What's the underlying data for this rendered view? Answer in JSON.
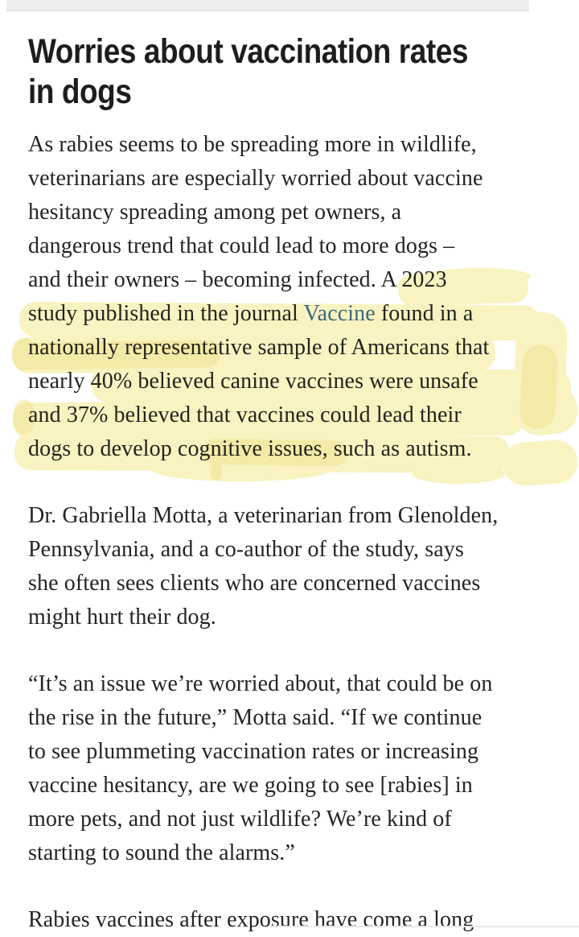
{
  "colors": {
    "highlight": "#f7f0b2",
    "highlight-dark": "#eee08d",
    "link": "#3d6ea5",
    "heading-text": "#1d1d1d",
    "body-text": "#242424",
    "top-bar": "#ededed",
    "top-bar-border": "#dcdcdc",
    "divider": "#e9e9e9"
  },
  "article": {
    "heading_lines": [
      "Worries about vaccination rates",
      "in dogs"
    ],
    "paragraph1_lines": [
      "As rabies seems to be spreading more in wildlife,",
      "veterinarians are especially worried about vaccine",
      "hesitancy spreading among pet owners, a",
      "dangerous trend that could lead to more dogs –",
      "and their owners – becoming infected. A 2023",
      [
        "study published in the journal ",
        {
          "text": "Vaccine",
          "class": "link",
          "name": "journal-vaccine-link",
          "interactable": true
        },
        " found in a"
      ],
      "nationally representative sample of Americans that",
      "nearly 40% believed canine vaccines were unsafe",
      "and 37% believed that vaccines could lead their",
      "dogs to develop cognitive issues, such as autism."
    ],
    "paragraph2_lines": [
      "Dr. Gabriella Motta, a veterinarian from Glenolden,",
      "Pennsylvania, and a co-author of the study, says",
      "she often sees clients who are concerned vaccines",
      "might hurt their dog."
    ],
    "paragraph3_lines": [
      "“It’s an issue we’re worried about, that could be on",
      "the rise in the future,” Motta said. “If we continue",
      "to see plummeting vaccination rates or increasing",
      "vaccine hesitancy, are we going to see [rabies] in",
      "more pets, and not just wildlife? We’re kind of",
      "starting to sound the alarms.”"
    ],
    "paragraph4_lines": [
      "Rabies vaccines after exposure have come a long"
    ]
  }
}
